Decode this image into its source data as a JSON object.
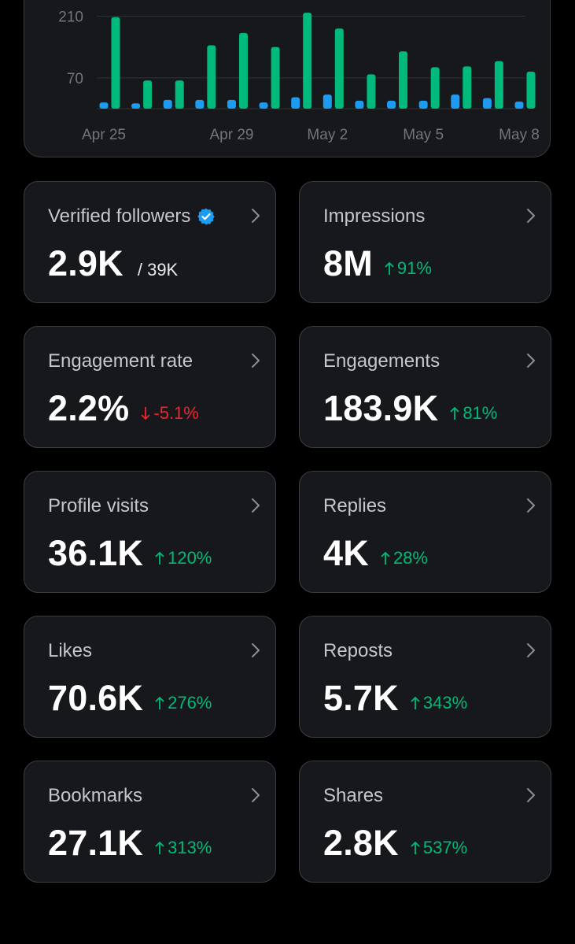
{
  "colors": {
    "background": "#000000",
    "card": "#16181c",
    "border": "#3a3d42",
    "positive": "#00ba7c",
    "negative": "#f4212e",
    "verified": "#1d9bf0"
  },
  "chart_data": {
    "type": "bar",
    "categories": [
      "Apr 25",
      "Apr 26",
      "Apr 27",
      "Apr 28",
      "Apr 29",
      "Apr 30",
      "May 1",
      "May 2",
      "May 3",
      "May 4",
      "May 5",
      "May 6",
      "May 7",
      "May 8"
    ],
    "x_tick_labels": [
      "Apr 25",
      "Apr 29",
      "May 2",
      "May 5",
      "May 8"
    ],
    "y_tick_labels": [
      "210",
      "70"
    ],
    "series": [
      {
        "color": "#1d9bf0",
        "values": [
          14,
          12,
          20,
          20,
          20,
          14,
          26,
          32,
          18,
          18,
          18,
          32,
          24,
          16
        ]
      },
      {
        "color": "#00ba7c",
        "values": [
          208,
          64,
          64,
          144,
          172,
          140,
          218,
          182,
          78,
          130,
          94,
          96,
          108,
          84
        ]
      }
    ],
    "ylim": [
      0,
      245
    ],
    "grid": true
  },
  "metrics": [
    {
      "label": "Verified followers",
      "value": "2.9K",
      "sub": "/ 39K",
      "verified": true,
      "icon": "chevron-right-icon"
    },
    {
      "label": "Impressions",
      "value": "8M",
      "change": "91%",
      "direction": "up",
      "icon": "chevron-right-icon"
    },
    {
      "label": "Engagement rate",
      "value": "2.2%",
      "change": "-5.1%",
      "direction": "down",
      "icon": "chevron-right-icon"
    },
    {
      "label": "Engagements",
      "value": "183.9K",
      "change": "81%",
      "direction": "up",
      "icon": "chevron-right-icon"
    },
    {
      "label": "Profile visits",
      "value": "36.1K",
      "change": "120%",
      "direction": "up",
      "icon": "chevron-right-icon"
    },
    {
      "label": "Replies",
      "value": "4K",
      "change": "28%",
      "direction": "up",
      "icon": "chevron-right-icon"
    },
    {
      "label": "Likes",
      "value": "70.6K",
      "change": "276%",
      "direction": "up",
      "icon": "chevron-right-icon"
    },
    {
      "label": "Reposts",
      "value": "5.7K",
      "change": "343%",
      "direction": "up",
      "icon": "chevron-right-icon"
    },
    {
      "label": "Bookmarks",
      "value": "27.1K",
      "change": "313%",
      "direction": "up",
      "icon": "chevron-right-icon"
    },
    {
      "label": "Shares",
      "value": "2.8K",
      "change": "537%",
      "direction": "up",
      "icon": "chevron-right-icon"
    }
  ]
}
